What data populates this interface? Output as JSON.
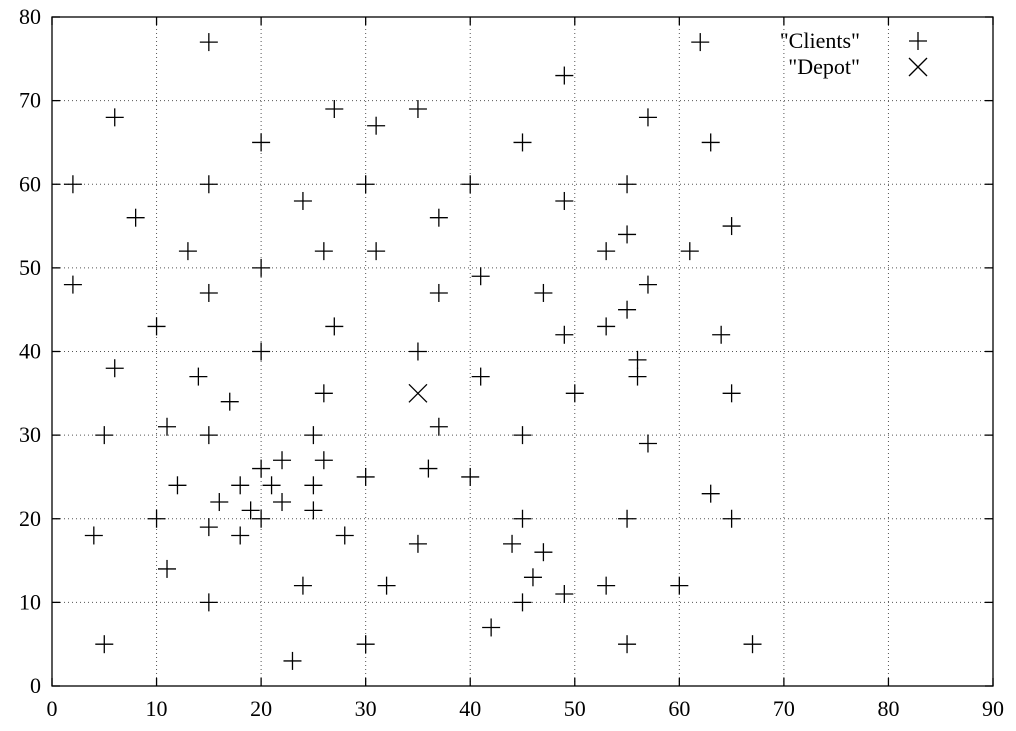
{
  "chart_data": {
    "type": "scatter",
    "title": "",
    "xlabel": "",
    "ylabel": "",
    "xlim": [
      0,
      90
    ],
    "ylim": [
      0,
      80
    ],
    "xticks": [
      "0",
      "10",
      "20",
      "30",
      "40",
      "50",
      "60",
      "70",
      "80",
      "90"
    ],
    "yticks": [
      "0",
      "10",
      "20",
      "30",
      "40",
      "50",
      "60",
      "70",
      "80"
    ],
    "grid": true,
    "legend_position": "top-right",
    "series": [
      {
        "name": "\"Clients\"",
        "marker": "plus",
        "points": [
          [
            15,
            77
          ],
          [
            62,
            77
          ],
          [
            49,
            73
          ],
          [
            27,
            69
          ],
          [
            35,
            69
          ],
          [
            6,
            68
          ],
          [
            57,
            68
          ],
          [
            31,
            67
          ],
          [
            20,
            65
          ],
          [
            45,
            65
          ],
          [
            63,
            65
          ],
          [
            2,
            60
          ],
          [
            15,
            60
          ],
          [
            30,
            60
          ],
          [
            40,
            60
          ],
          [
            55,
            60
          ],
          [
            24,
            58
          ],
          [
            49,
            58
          ],
          [
            8,
            56
          ],
          [
            37,
            56
          ],
          [
            65,
            55
          ],
          [
            55,
            54
          ],
          [
            13,
            52
          ],
          [
            26,
            52
          ],
          [
            31,
            52
          ],
          [
            53,
            52
          ],
          [
            61,
            52
          ],
          [
            20,
            50
          ],
          [
            41,
            49
          ],
          [
            2,
            48
          ],
          [
            57,
            48
          ],
          [
            15,
            47
          ],
          [
            37,
            47
          ],
          [
            47,
            47
          ],
          [
            55,
            45
          ],
          [
            10,
            43
          ],
          [
            27,
            43
          ],
          [
            53,
            43
          ],
          [
            49,
            42
          ],
          [
            64,
            42
          ],
          [
            20,
            40
          ],
          [
            35,
            40
          ],
          [
            56,
            39
          ],
          [
            6,
            38
          ],
          [
            14,
            37
          ],
          [
            41,
            37
          ],
          [
            56,
            37
          ],
          [
            26,
            35
          ],
          [
            50,
            35
          ],
          [
            65,
            35
          ],
          [
            17,
            34
          ],
          [
            11,
            31
          ],
          [
            37,
            31
          ],
          [
            5,
            30
          ],
          [
            15,
            30
          ],
          [
            25,
            30
          ],
          [
            45,
            30
          ],
          [
            57,
            29
          ],
          [
            20,
            26
          ],
          [
            36,
            26
          ],
          [
            22,
            27
          ],
          [
            26,
            27
          ],
          [
            12,
            24
          ],
          [
            18,
            24
          ],
          [
            21,
            24
          ],
          [
            25,
            24
          ],
          [
            30,
            25
          ],
          [
            40,
            25
          ],
          [
            63,
            23
          ],
          [
            16,
            22
          ],
          [
            22,
            22
          ],
          [
            19,
            21
          ],
          [
            25,
            21
          ],
          [
            10,
            20
          ],
          [
            20,
            20
          ],
          [
            45,
            20
          ],
          [
            55,
            20
          ],
          [
            65,
            20
          ],
          [
            15,
            19
          ],
          [
            4,
            18
          ],
          [
            18,
            18
          ],
          [
            28,
            18
          ],
          [
            35,
            17
          ],
          [
            44,
            17
          ],
          [
            47,
            16
          ],
          [
            11,
            14
          ],
          [
            46,
            13
          ],
          [
            24,
            12
          ],
          [
            32,
            12
          ],
          [
            53,
            12
          ],
          [
            60,
            12
          ],
          [
            49,
            11
          ],
          [
            15,
            10
          ],
          [
            45,
            10
          ],
          [
            42,
            7
          ],
          [
            5,
            5
          ],
          [
            30,
            5
          ],
          [
            55,
            5
          ],
          [
            67,
            5
          ],
          [
            23,
            3
          ]
        ]
      },
      {
        "name": "\"Depot\"",
        "marker": "cross",
        "points": [
          [
            35,
            35
          ]
        ]
      }
    ]
  }
}
